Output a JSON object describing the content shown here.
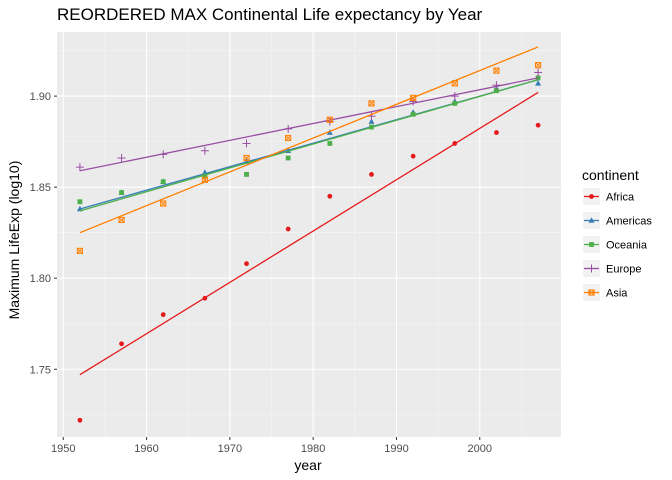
{
  "chart_data": {
    "type": "scatter",
    "title": "REORDERED MAX Continental Life expectancy by Year",
    "xlabel": "year",
    "ylabel": "Maximum LifeExp (log10)",
    "xlim": [
      1949.25,
      2009.75
    ],
    "ylim": [
      1.7128,
      1.9352
    ],
    "x_ticks": [
      1950,
      1960,
      1970,
      1980,
      1990,
      2000
    ],
    "x_tick_labels": [
      "1950",
      "1960",
      "1970",
      "1980",
      "1990",
      "2000"
    ],
    "y_ticks": [
      1.75,
      1.8,
      1.85,
      1.9
    ],
    "y_tick_labels": [
      "1.75",
      "1.80",
      "1.85",
      "1.90"
    ],
    "grid": true,
    "legend": {
      "title": "continent",
      "position": "right"
    },
    "x": [
      1952,
      1957,
      1962,
      1967,
      1972,
      1977,
      1982,
      1987,
      1992,
      1997,
      2002,
      2007
    ],
    "series": [
      {
        "name": "Africa",
        "color": "#e41a1c",
        "shape": "circle",
        "values": [
          1.722,
          1.764,
          1.78,
          1.789,
          1.808,
          1.827,
          1.845,
          1.857,
          1.867,
          1.874,
          1.88,
          1.884
        ],
        "fit": [
          1.747,
          1.902
        ]
      },
      {
        "name": "Americas",
        "color": "#377eb8",
        "shape": "triangle",
        "values": [
          1.838,
          1.847,
          1.853,
          1.858,
          1.864,
          1.87,
          1.88,
          1.886,
          1.891,
          1.897,
          1.904,
          1.907
        ],
        "fit": [
          1.838,
          1.909
        ]
      },
      {
        "name": "Oceania",
        "color": "#4daf4a",
        "shape": "square",
        "values": [
          1.842,
          1.847,
          1.853,
          1.856,
          1.857,
          1.866,
          1.874,
          1.883,
          1.89,
          1.896,
          1.903,
          1.91
        ],
        "fit": [
          1.837,
          1.909
        ]
      },
      {
        "name": "Europe",
        "color": "#984ea3",
        "shape": "plus",
        "values": [
          1.861,
          1.866,
          1.868,
          1.87,
          1.874,
          1.882,
          1.886,
          1.889,
          1.897,
          1.9,
          1.906,
          1.913
        ],
        "fit": [
          1.859,
          1.91
        ]
      },
      {
        "name": "Asia",
        "color": "#ff7f00",
        "shape": "boxx",
        "values": [
          1.815,
          1.832,
          1.841,
          1.854,
          1.866,
          1.877,
          1.887,
          1.896,
          1.899,
          1.907,
          1.914,
          1.917
        ],
        "fit": [
          1.825,
          1.927
        ]
      }
    ]
  }
}
